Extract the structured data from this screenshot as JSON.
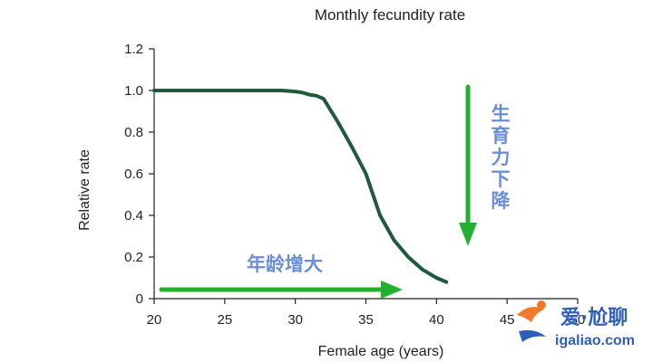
{
  "chart_data": {
    "type": "line",
    "title": "Monthly fecundity rate",
    "xlabel": "Female age (years)",
    "ylabel": "Relative rate",
    "xlim": [
      20,
      50
    ],
    "ylim": [
      0,
      1.2
    ],
    "x_ticks": [
      "20",
      "25",
      "30",
      "35",
      "40",
      "45",
      "50"
    ],
    "y_ticks": [
      "0",
      "0.2",
      "0.4",
      "0.6",
      "0.8",
      "1.0",
      "1.2"
    ],
    "grid": false,
    "series": [
      {
        "color": "#1f5a3c",
        "x": [
          20,
          22,
          24,
          26,
          28,
          29,
          30,
          30.5,
          31,
          31.5,
          32,
          33,
          34,
          35,
          35.5,
          36,
          37,
          38,
          39,
          40,
          40.7
        ],
        "y": [
          1.0,
          1.0,
          1.0,
          1.0,
          1.0,
          1.0,
          0.995,
          0.99,
          0.98,
          0.975,
          0.96,
          0.85,
          0.73,
          0.6,
          0.5,
          0.4,
          0.28,
          0.2,
          0.14,
          0.1,
          0.08
        ]
      }
    ],
    "annotations": [
      {
        "text": "年龄增大",
        "arrow": "right",
        "color": "#22b02e"
      },
      {
        "text": "生育力下降",
        "arrow": "down",
        "color": "#22b02e"
      }
    ]
  },
  "watermark": {
    "text": "爱·尬聊",
    "sub": "igaliao.com"
  }
}
